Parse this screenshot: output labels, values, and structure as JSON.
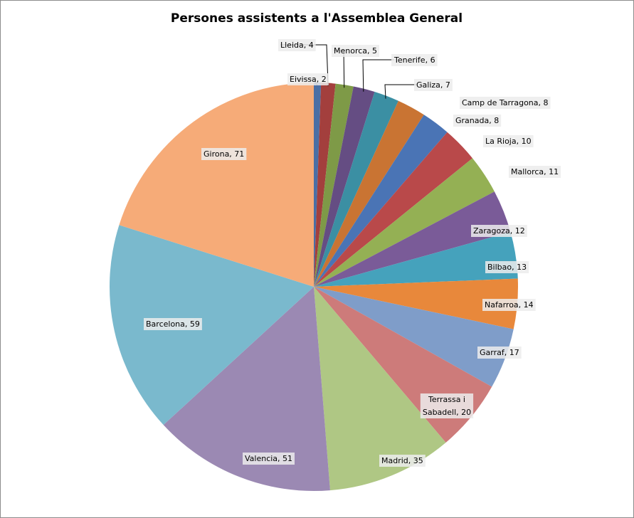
{
  "chart_data": {
    "type": "pie",
    "title": "Persones assistents a l'Assemblea General",
    "label_separator": ", ",
    "slices": [
      {
        "name": "Eivissa",
        "value": 2,
        "color": "#4a6fa5",
        "label_lines": [
          "Eivissa, 2"
        ]
      },
      {
        "name": "Lleida",
        "value": 4,
        "color": "#a33f3d",
        "label_lines": [
          "Lleida, 4"
        ]
      },
      {
        "name": "Menorca",
        "value": 5,
        "color": "#7e9a47",
        "label_lines": [
          "Menorca, 5"
        ]
      },
      {
        "name": "Tenerife",
        "value": 6,
        "color": "#654d83",
        "label_lines": [
          "Tenerife,  6"
        ]
      },
      {
        "name": "Galiza",
        "value": 7,
        "color": "#3b8fa3",
        "label_lines": [
          "Galiza, 7"
        ]
      },
      {
        "name": "Camp de Tarragona",
        "value": 8,
        "color": "#c97433",
        "label_lines": [
          "Camp de Tarragona, 8"
        ]
      },
      {
        "name": "Granada",
        "value": 8,
        "color": "#4a74b5",
        "label_lines": [
          "Granada, 8"
        ]
      },
      {
        "name": "La Rioja",
        "value": 10,
        "color": "#b9494a",
        "label_lines": [
          "La Rioja, 10"
        ]
      },
      {
        "name": "Mallorca",
        "value": 11,
        "color": "#94b054",
        "label_lines": [
          "Mallorca, 11"
        ]
      },
      {
        "name": "Zaragoza",
        "value": 12,
        "color": "#7a5b98",
        "label_lines": [
          "Zaragoza, 12"
        ]
      },
      {
        "name": "Bilbao",
        "value": 13,
        "color": "#45a2bc",
        "label_lines": [
          "Bilbao, 13"
        ]
      },
      {
        "name": "Nafarroa",
        "value": 14,
        "color": "#e8883b",
        "label_lines": [
          "Nafarroa, 14"
        ]
      },
      {
        "name": "Garraf",
        "value": 17,
        "color": "#7f9dc9",
        "label_lines": [
          "Garraf, 17"
        ]
      },
      {
        "name": "Terrassa i Sabadell",
        "value": 20,
        "color": "#cd7b7a",
        "label_lines": [
          "Terrassa i",
          "Sabadell, 20"
        ]
      },
      {
        "name": "Madrid",
        "value": 35,
        "color": "#afc784",
        "label_lines": [
          "Madrid, 35"
        ]
      },
      {
        "name": "Valencia",
        "value": 51,
        "color": "#9b89b3",
        "label_lines": [
          "Valencia, 51"
        ]
      },
      {
        "name": "Barcelona",
        "value": 59,
        "color": "#7ab9cd",
        "label_lines": [
          "Barcelona, 59"
        ]
      },
      {
        "name": "Girona",
        "value": 71,
        "color": "#f6ab78",
        "label_lines": [
          "Girona, 71"
        ]
      }
    ]
  }
}
